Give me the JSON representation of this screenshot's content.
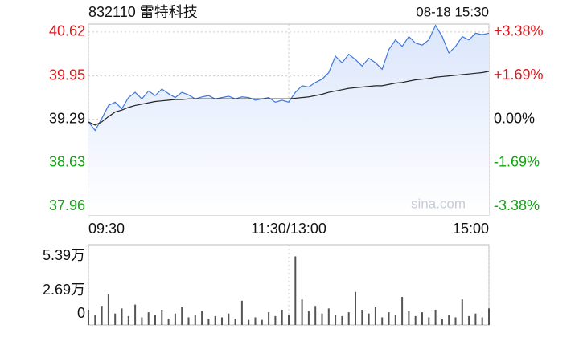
{
  "chart_data": [
    {
      "type": "line",
      "title": "832110 雷特科技",
      "subtitle": "08-18 15:30",
      "watermark": "sina.com",
      "x": [
        0,
        4,
        8,
        12,
        16,
        20,
        24,
        28,
        32,
        36,
        40,
        44,
        48,
        52,
        56,
        60,
        64,
        68,
        72,
        76,
        80,
        84,
        88,
        92,
        96,
        100,
        104,
        108,
        112,
        116,
        120,
        124,
        128,
        132,
        136,
        140,
        144,
        148,
        152,
        156,
        160,
        164,
        168,
        172,
        176,
        180,
        184,
        188,
        192,
        196,
        200,
        204,
        208,
        212,
        216,
        220,
        224,
        228,
        232,
        236,
        240
      ],
      "xlim": [
        0,
        240
      ],
      "xticks": [
        {
          "value": 0,
          "label": "09:30"
        },
        {
          "value": 120,
          "label": "11:30/13:00"
        },
        {
          "value": 240,
          "label": "15:00"
        }
      ],
      "ylim": [
        37.83,
        40.74
      ],
      "yticks": [
        40.62,
        39.95,
        39.29,
        38.63,
        37.96
      ],
      "y2lim": [
        -3.72,
        3.69
      ],
      "y2ticks": [
        {
          "value": 3.38,
          "label": "+3.38%"
        },
        {
          "value": 1.69,
          "label": "+1.69%"
        },
        {
          "value": 0,
          "label": "0.00%"
        },
        {
          "value": -1.69,
          "label": "-1.69%"
        },
        {
          "value": -3.38,
          "label": "-3.38%"
        }
      ],
      "up_color": "#e0161b",
      "down_color": "#13a313",
      "grid": true,
      "series": [
        {
          "color": "#3f78d8",
          "fill": "#dbe6fb",
          "values": [
            39.25,
            39.12,
            39.3,
            39.5,
            39.55,
            39.45,
            39.62,
            39.7,
            39.6,
            39.72,
            39.65,
            39.75,
            39.68,
            39.62,
            39.7,
            39.66,
            39.6,
            39.63,
            39.65,
            39.6,
            39.62,
            39.64,
            39.6,
            39.63,
            39.62,
            39.58,
            39.6,
            39.62,
            39.55,
            39.58,
            39.55,
            39.7,
            39.8,
            39.78,
            39.85,
            39.9,
            40.0,
            40.25,
            40.15,
            40.28,
            40.2,
            40.1,
            40.22,
            40.15,
            40.05,
            40.35,
            40.5,
            40.4,
            40.55,
            40.45,
            40.42,
            40.5,
            40.72,
            40.55,
            40.3,
            40.4,
            40.55,
            40.5,
            40.6,
            40.58,
            40.6
          ]
        },
        {
          "color": "#222222",
          "values": [
            39.25,
            39.2,
            39.25,
            39.33,
            39.4,
            39.43,
            39.47,
            39.5,
            39.52,
            39.54,
            39.56,
            39.57,
            39.58,
            39.59,
            39.59,
            39.6,
            39.6,
            39.6,
            39.6,
            39.6,
            39.6,
            39.6,
            39.6,
            39.6,
            39.6,
            39.6,
            39.6,
            39.6,
            39.6,
            39.6,
            39.6,
            39.61,
            39.62,
            39.63,
            39.65,
            39.67,
            39.7,
            39.72,
            39.74,
            39.76,
            39.77,
            39.78,
            39.79,
            39.8,
            39.8,
            39.82,
            39.84,
            39.85,
            39.87,
            39.89,
            39.9,
            39.91,
            39.93,
            39.94,
            39.95,
            39.96,
            39.97,
            39.98,
            39.99,
            40.0,
            40.02
          ]
        }
      ]
    },
    {
      "type": "bar",
      "color": "#555555",
      "ylim": [
        0,
        6.3
      ],
      "yticks": [
        {
          "value": 5.39,
          "label": "5.39万"
        },
        {
          "value": 2.69,
          "label": "2.69万"
        },
        0
      ],
      "values": [
        1.2,
        0.8,
        1.5,
        2.4,
        0.9,
        1.3,
        0.7,
        1.6,
        0.6,
        1.0,
        0.8,
        1.2,
        0.5,
        0.9,
        1.4,
        0.6,
        0.8,
        1.1,
        0.5,
        0.7,
        0.6,
        0.9,
        0.5,
        1.9,
        0.4,
        0.6,
        0.4,
        1.0,
        0.7,
        1.2,
        0.8,
        5.39,
        2.0,
        1.1,
        1.5,
        0.9,
        1.3,
        0.8,
        0.7,
        1.0,
        2.6,
        1.2,
        0.9,
        1.4,
        0.6,
        1.0,
        0.8,
        2.2,
        1.1,
        0.7,
        1.0,
        0.6,
        1.2,
        0.5,
        0.8,
        0.6,
        2.0,
        0.7,
        0.9,
        0.6,
        1.3
      ]
    }
  ]
}
